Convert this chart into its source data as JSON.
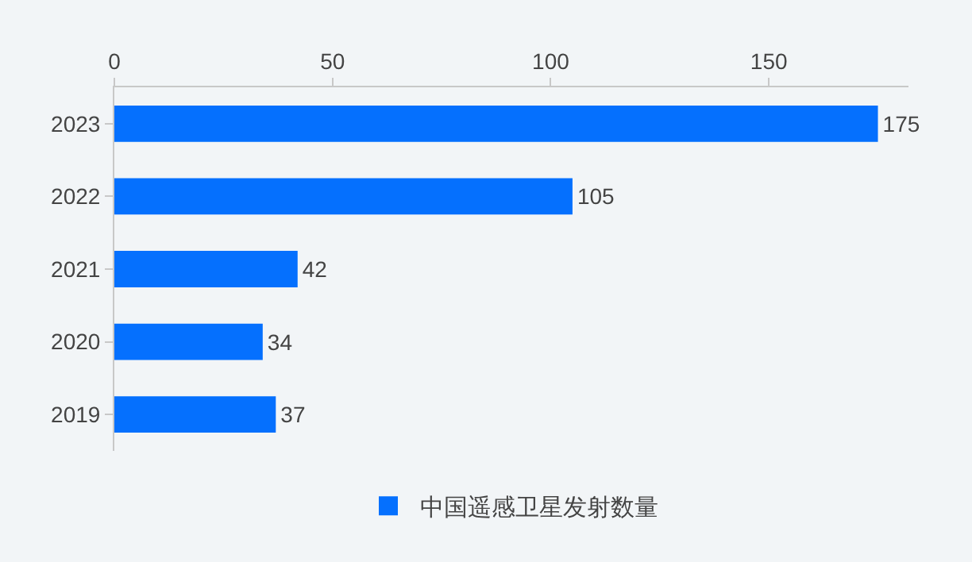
{
  "chart_data": {
    "type": "bar",
    "orientation": "horizontal",
    "categories": [
      "2023",
      "2022",
      "2021",
      "2020",
      "2019"
    ],
    "series": [
      {
        "name": "中国遥感卫星发射数量",
        "color": "#0570fe",
        "values": [
          175,
          105,
          42,
          34,
          37
        ]
      }
    ],
    "xlim": [
      0,
      182
    ],
    "xticks": [
      0,
      50,
      100,
      150
    ],
    "data_labels": true,
    "grid": false,
    "legend": "bottom"
  }
}
